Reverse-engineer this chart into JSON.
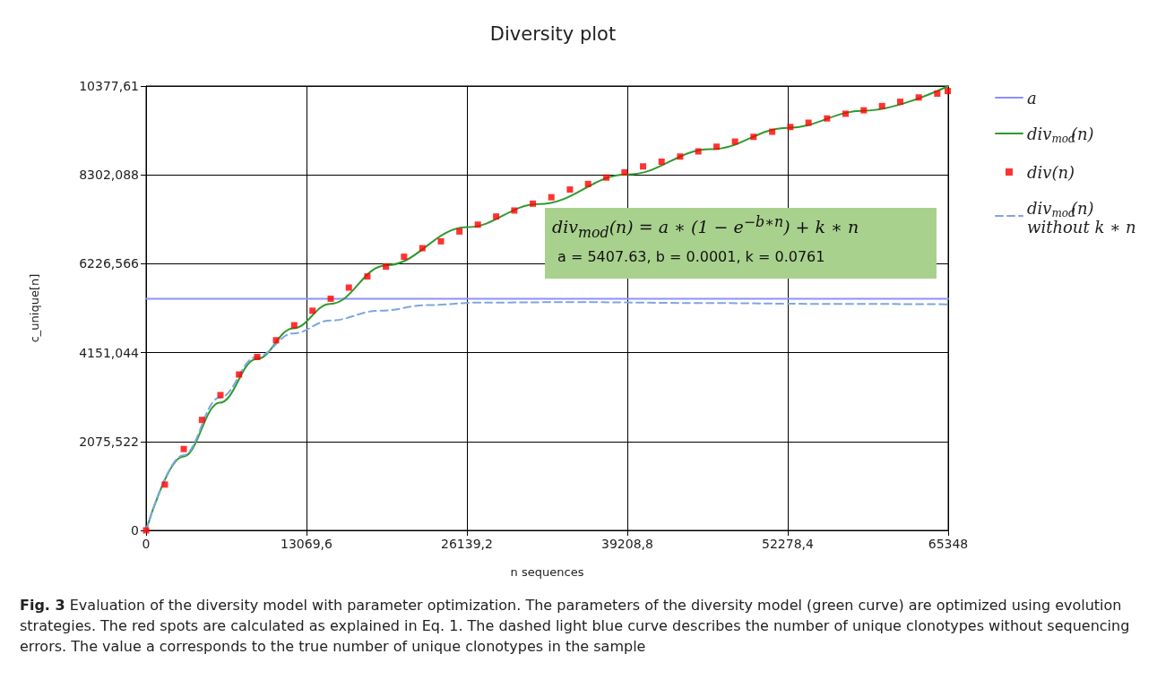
{
  "chart_data": {
    "type": "line",
    "title": "Diversity plot",
    "xlabel": "n sequences",
    "ylabel": "c_unique[n]",
    "xlim": [
      0,
      65348
    ],
    "xticks": [
      0,
      {
        "value": 13069.6,
        "label": "13069,6"
      },
      {
        "value": 26139.2,
        "label": "26139,2"
      },
      {
        "value": 39208.8,
        "label": "39208,8"
      },
      {
        "value": 52278.4,
        "label": "52278,4"
      },
      65348
    ],
    "ylim": [
      0,
      10377.61
    ],
    "yticks": [
      0,
      {
        "value": 2075.522,
        "label": "2075,522"
      },
      {
        "value": 4151.044,
        "label": "4151,044"
      },
      {
        "value": 6226.566,
        "label": "6226,566"
      },
      {
        "value": 8302.088,
        "label": "8302,088"
      },
      {
        "value": 10377.61,
        "label": "10377,61"
      }
    ],
    "grid": true,
    "legend": "right",
    "series": [
      {
        "name": "a",
        "color": "#8f8fff",
        "line_style": "solid",
        "marker": "none",
        "x": [
          0,
          65348
        ],
        "values": [
          5410,
          5410
        ]
      },
      {
        "name": "div$_{mod}$(n)",
        "color": "#2e9a2e",
        "line_style": "solid",
        "marker": "none",
        "x": [
          0,
          3000,
          6000,
          9000,
          12000,
          15000,
          19540,
          26140,
          32000,
          39210,
          46000,
          52280,
          58470,
          65348
        ],
        "values": [
          0,
          1720,
          2980,
          4000,
          4720,
          5290,
          6190,
          7080,
          7620,
          8310,
          8900,
          9400,
          9800,
          10377.61
        ]
      },
      {
        "name": "div(n)",
        "type": "scatter",
        "color": "#ff0000",
        "marker": "square",
        "x": [
          0,
          1530,
          3070,
          4550,
          6060,
          7570,
          9050,
          10590,
          12070,
          13560,
          15040,
          16520,
          18030,
          19540,
          21020,
          22510,
          24020,
          25530,
          27030,
          28520,
          30000,
          31510,
          33020,
          34530,
          36010,
          37500,
          38980,
          40490,
          42000,
          43510,
          44990,
          46480,
          47980,
          49490,
          51010,
          52490,
          53970,
          55480,
          56990,
          58470,
          59960,
          61440,
          62950,
          64460,
          65310
        ],
        "values": [
          0,
          1070,
          1900,
          2580,
          3160,
          3640,
          4050,
          4440,
          4790,
          5130,
          5410,
          5670,
          5930,
          6160,
          6390,
          6590,
          6750,
          6980,
          7140,
          7330,
          7470,
          7630,
          7780,
          7960,
          8090,
          8240,
          8360,
          8500,
          8610,
          8730,
          8850,
          8960,
          9080,
          9190,
          9310,
          9420,
          9520,
          9620,
          9730,
          9810,
          9910,
          10010,
          10110,
          10200,
          10260
        ]
      },
      {
        "name": "div$_{mod}$(n) without k ∗ n",
        "color": "#7ea6e0",
        "line_style": "dashed",
        "marker": "none",
        "x": [
          0,
          3000,
          6000,
          9000,
          12000,
          15000,
          19000,
          23000,
          27000,
          35000,
          45000,
          55000,
          65348
        ],
        "values": [
          0,
          1750,
          3100,
          4050,
          4600,
          4900,
          5130,
          5260,
          5320,
          5330,
          5310,
          5290,
          5280
        ]
      }
    ],
    "annotations": [
      "div$_{mod}$(n) = a ∗ (1 − e$^{−b∗n}$) + k ∗ n",
      "a = 5407.63, b = 0.0001, k = 0.0761",
      "Fig. 3",
      "Evaluation of the diversity model with parameter optimization. The parameters of the diversity model (green curve) are optimized using evolution strategies. The red spots are calculated as explained in Eq. 1. The dashed light blue curve describes the number of unique clonotypes without sequencing errors. The value a corresponds to the true number of unique clonotypes in the sample"
    ]
  }
}
